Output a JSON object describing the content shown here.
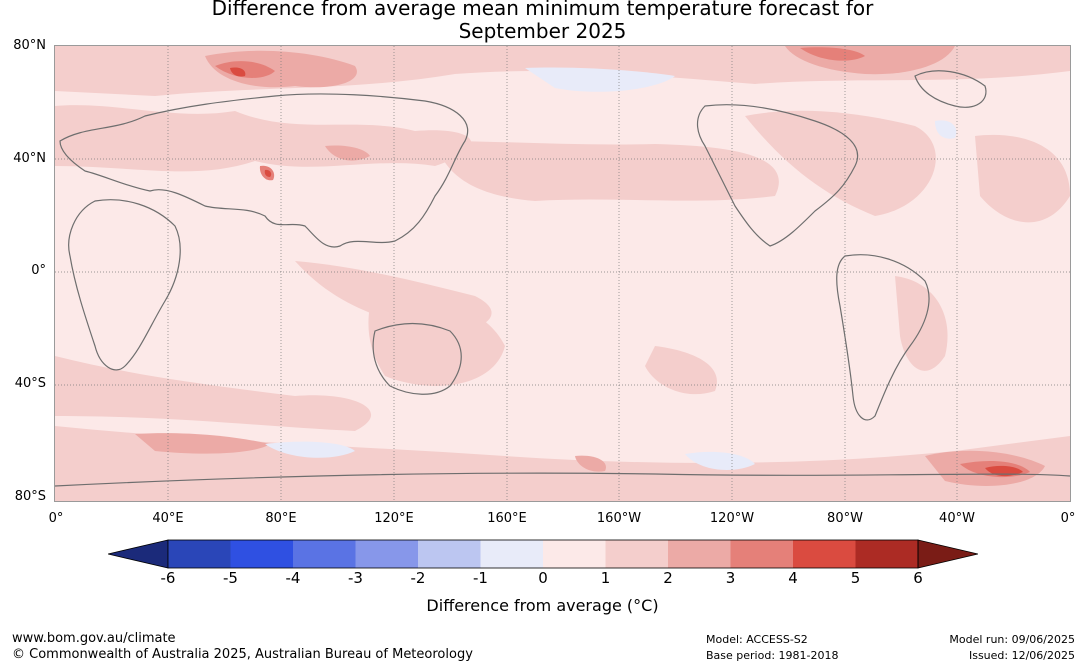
{
  "title": {
    "line1": "Difference from average mean minimum temperature forecast for",
    "line2": "September 2025"
  },
  "map": {
    "lat_labels": [
      "80°N",
      "40°N",
      "0°",
      "40°S",
      "80°S"
    ],
    "lon_labels": [
      "0°",
      "40°E",
      "80°E",
      "120°E",
      "160°E",
      "160°W",
      "120°W",
      "80°W",
      "40°W",
      "0°"
    ],
    "ocean_color": "#fce9e8",
    "coastline_color": "#6e6e6e"
  },
  "colorbar": {
    "label": "Difference from average (°C)",
    "ticks": [
      "-6",
      "-5",
      "-4",
      "-3",
      "-2",
      "-1",
      "0",
      "1",
      "2",
      "3",
      "4",
      "5",
      "6"
    ],
    "colors": [
      "#1b2a7a",
      "#2a46b8",
      "#2f50e2",
      "#5a73e4",
      "#8797ea",
      "#bcc6f1",
      "#e8ebf9",
      "#fce9e8",
      "#f4cecc",
      "#ecaaa6",
      "#e58079",
      "#da4b40",
      "#ac2b24",
      "#7a1c16"
    ]
  },
  "footer": {
    "website": "www.bom.gov.au/climate",
    "copyright": "© Commonwealth of Australia 2025, Australian Bureau of Meteorology",
    "model": "Model: ACCESS-S2",
    "base_period": "Base period: 1981-2018",
    "model_run": "Model run: 09/06/2025",
    "issued": "Issued: 12/06/2025"
  }
}
